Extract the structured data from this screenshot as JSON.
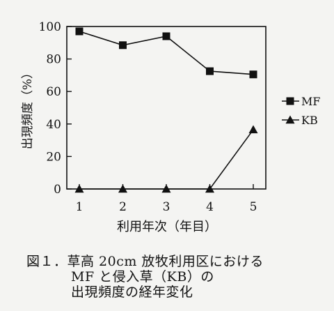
{
  "chart_data": {
    "type": "line",
    "ylabel": "出現頻度（%）",
    "xlabel": "利用年次（年目）",
    "x": [
      1,
      2,
      3,
      4,
      5
    ],
    "x_tick_labels": [
      "1",
      "2",
      "3",
      "4",
      "5"
    ],
    "ylim": [
      0,
      100
    ],
    "y_ticks": [
      0,
      20,
      40,
      60,
      80,
      100
    ],
    "y_tick_labels": [
      "0",
      "20",
      "40",
      "60",
      "80",
      "100"
    ],
    "grid": false,
    "legend_position": "right",
    "series": [
      {
        "name": "MF",
        "marker": "square",
        "values": [
          97,
          88.5,
          94,
          72.5,
          70.5
        ]
      },
      {
        "name": "KB",
        "marker": "triangle",
        "values": [
          0,
          0,
          0,
          0,
          36.5
        ]
      }
    ]
  },
  "caption": {
    "line1": "図１．草高 20cm 放牧利用区における",
    "line2": "MF と侵入草（KB）の",
    "line3": "出現頻度の経年変化"
  }
}
